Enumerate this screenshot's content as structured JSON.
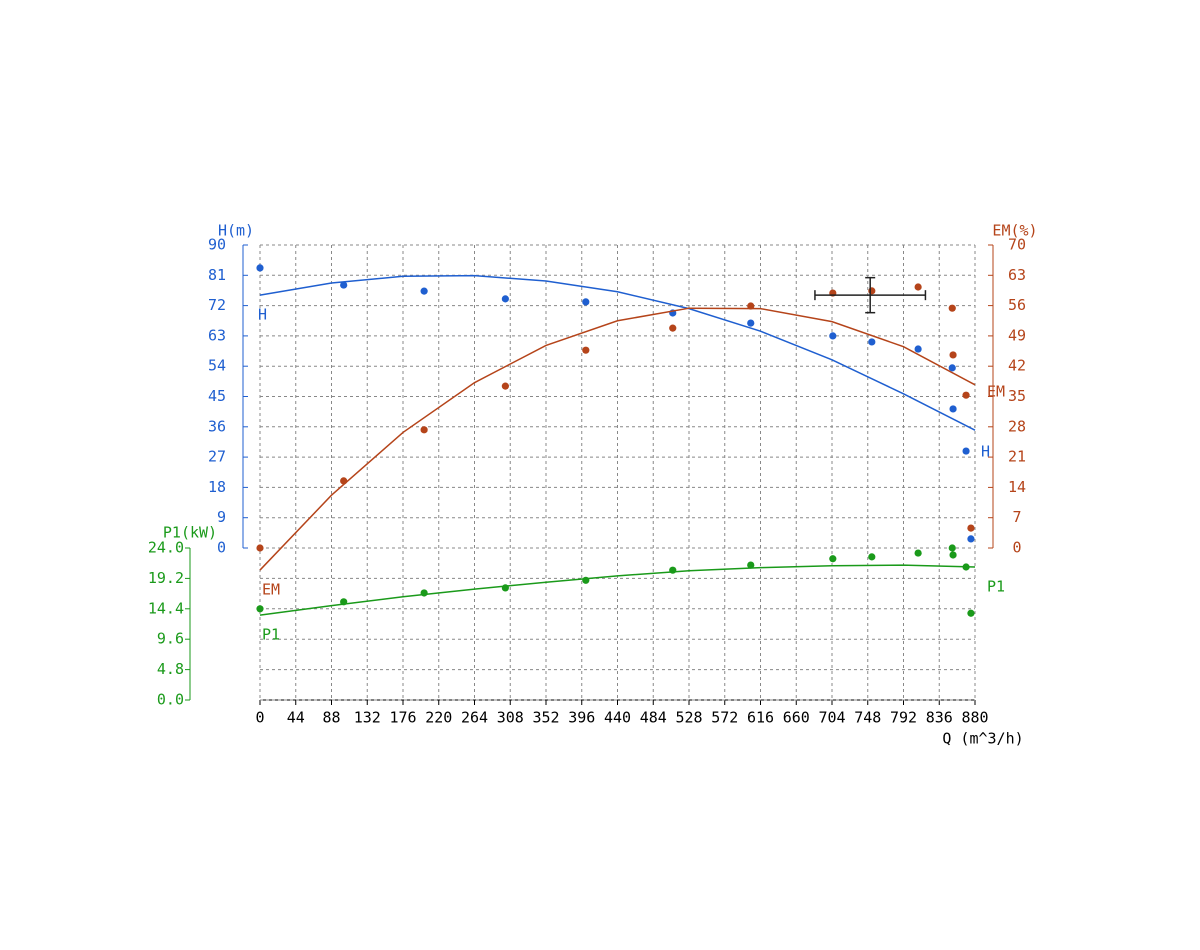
{
  "chart_data": {
    "type": "pump-curve",
    "x_label": "Q (m^3/h)",
    "y_label": "H(m)",
    "y2_label": "EM(%)",
    "y3_label": "P1(kW)",
    "xlim": [
      0,
      880
    ],
    "xticks": [
      0,
      44,
      88,
      132,
      176,
      220,
      264,
      308,
      352,
      396,
      440,
      484,
      528,
      572,
      616,
      660,
      704,
      748,
      792,
      836,
      880
    ],
    "ylim": [
      0,
      90
    ],
    "yticks": [
      0,
      9,
      18,
      27,
      36,
      45,
      54,
      63,
      72,
      81,
      90
    ],
    "y2lim": [
      0,
      70
    ],
    "y2ticks": [
      0,
      7,
      14,
      21,
      28,
      35,
      42,
      49,
      56,
      63,
      70
    ],
    "y3lim": [
      0,
      24
    ],
    "y3ticks": [
      {
        "value": 24,
        "label": "24.0"
      },
      19.2,
      14.4,
      9.6,
      4.8,
      {
        "value": 0,
        "label": "0.0"
      }
    ],
    "grid": true,
    "x": [
      0,
      103,
      202,
      302,
      401,
      508,
      604,
      705,
      753,
      810,
      852,
      853,
      869,
      875
    ],
    "fit_x": [
      0,
      88,
      176,
      264,
      352,
      440,
      528,
      616,
      704,
      792,
      880
    ],
    "series": [
      {
        "name": "H",
        "color": "#1f5fd0",
        "axis": "y",
        "values": [
          83.2,
          78.1,
          76.3,
          74.0,
          73.1,
          69.8,
          66.8,
          63.0,
          61.2,
          59.1,
          53.5,
          41.3,
          28.8,
          2.7
        ],
        "fit": [
          75.1,
          78.7,
          80.7,
          80.9,
          79.3,
          76.1,
          71.1,
          64.4,
          55.9,
          45.8,
          35.0
        ]
      },
      {
        "name": "EM",
        "color": "#b5441a",
        "axis": "y2",
        "values": [
          0,
          15.5,
          27.3,
          37.4,
          45.7,
          50.8,
          55.9,
          58.9,
          59.4,
          60.3,
          55.4,
          44.6,
          35.3,
          4.6
        ],
        "fit": [
          -5.1,
          12.2,
          26.7,
          38.2,
          46.8,
          52.5,
          55.4,
          55.3,
          52.3,
          46.5,
          37.7
        ]
      },
      {
        "name": "P1",
        "color": "#1a9a1a",
        "axis": "y3",
        "values": [
          14.4,
          15.5,
          16.9,
          17.7,
          18.9,
          20.5,
          21.3,
          22.3,
          22.6,
          23.2,
          24.0,
          22.9,
          21.0,
          13.7
        ],
        "fit": [
          13.4,
          14.9,
          16.3,
          17.5,
          18.6,
          19.6,
          20.4,
          20.9,
          21.2,
          21.3,
          21.0
        ]
      }
    ],
    "operating_point": {
      "x": 751,
      "y": 75.1,
      "xerr": 68,
      "yerr": 5.2
    }
  }
}
